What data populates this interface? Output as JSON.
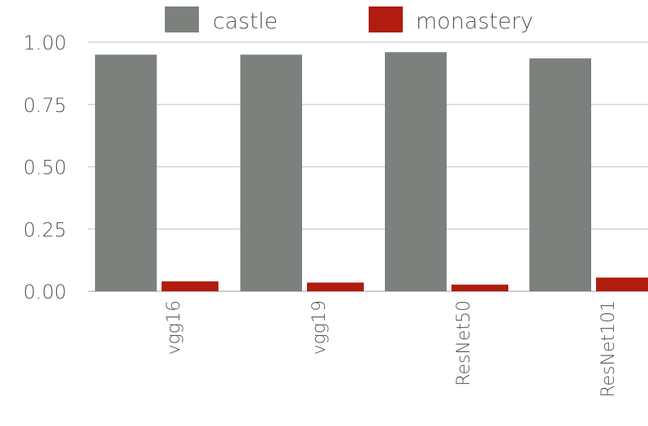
{
  "chart_data": {
    "type": "bar",
    "title": "",
    "xlabel": "",
    "ylabel": "",
    "categories": [
      "vgg16",
      "vgg19",
      "ResNet50",
      "ResNet101"
    ],
    "series": [
      {
        "name": "castle",
        "values": [
          0.95,
          0.95,
          0.96,
          0.935
        ]
      },
      {
        "name": "monastery",
        "values": [
          0.04,
          0.035,
          0.027,
          0.055
        ]
      }
    ],
    "ylim": [
      0,
      1
    ],
    "yticks": [
      "0.00",
      "0.25",
      "0.50",
      "0.75",
      "1.00"
    ],
    "grid": true,
    "legend_position": "top-right",
    "colors": {
      "castle": "#7d817e",
      "monastery": "#b01c0e",
      "grid": "#d4d4d4",
      "text": "#555555"
    }
  }
}
